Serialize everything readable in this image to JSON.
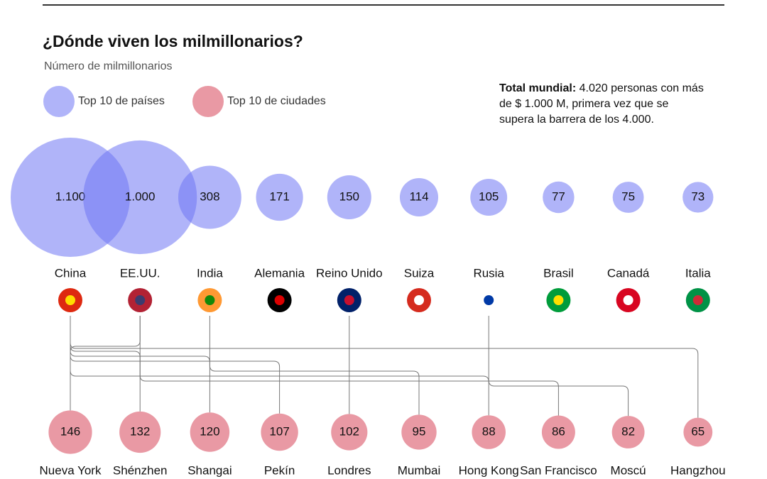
{
  "chart_data": {
    "type": "bubble",
    "title": "¿Dónde viven los milmillonarios?",
    "subtitle": "Número de milmillonarios",
    "note_label": "Total mundial:",
    "note_text": "4.020 personas con más de $ 1.000 M, primera vez que se supera la barrera de los 4.000.",
    "series": [
      {
        "name": "Top 10 de países",
        "color": "#6f77f4",
        "categories": [
          "China",
          "EE.UU.",
          "India",
          "Alemania",
          "Reino Unido",
          "Suiza",
          "Rusia",
          "Brasil",
          "Canadá",
          "Italia"
        ],
        "values": [
          1100,
          1000,
          308,
          171,
          150,
          114,
          105,
          77,
          75,
          73
        ],
        "value_labels": [
          "1.100",
          "1.000",
          "308",
          "171",
          "150",
          "114",
          "105",
          "77",
          "75",
          "73"
        ]
      },
      {
        "name": "Top 10 de ciudades",
        "color": "#e8949f",
        "categories": [
          "Nueva York",
          "Shénzhen",
          "Shangai",
          "Pekín",
          "Londres",
          "Mumbai",
          "Hong Kong",
          "San Francisco",
          "Moscú",
          "Hangzhou"
        ],
        "values": [
          146,
          132,
          120,
          107,
          102,
          95,
          88,
          86,
          82,
          65
        ],
        "value_labels": [
          "146",
          "132",
          "120",
          "107",
          "102",
          "95",
          "88",
          "86",
          "82",
          "65"
        ]
      }
    ]
  }
}
